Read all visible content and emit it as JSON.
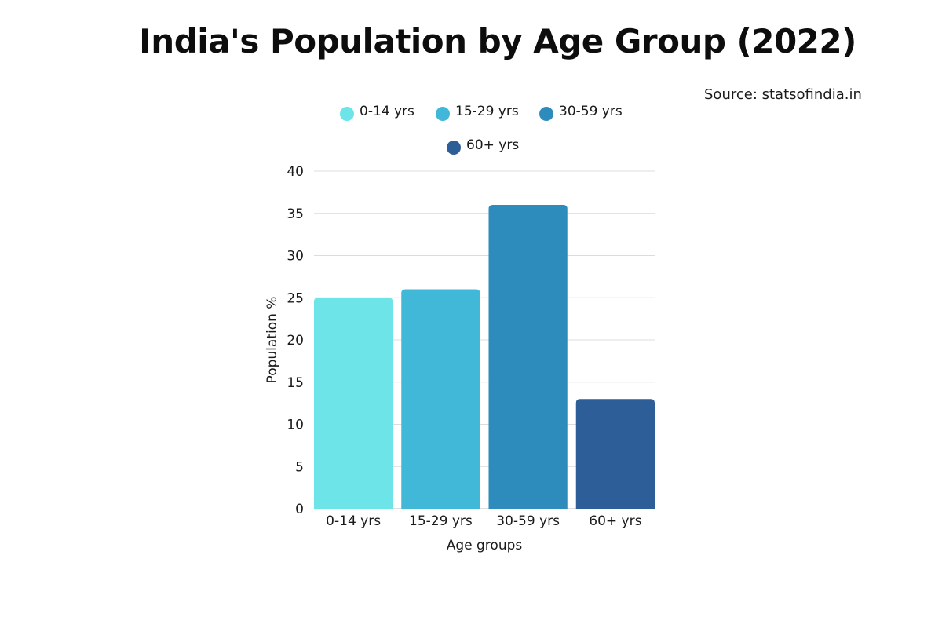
{
  "title": "India's Population by Age Group (2022)",
  "source": "Source: statsofindia.in",
  "chart_data": {
    "type": "bar",
    "categories": [
      "0-14 yrs",
      "15-29 yrs",
      "30-59 yrs",
      "60+ yrs"
    ],
    "values": [
      25,
      26,
      36,
      13
    ],
    "colors": [
      "#6ce4e8",
      "#42b8d8",
      "#2e8cbc",
      "#2e5e98"
    ],
    "legend": [
      "0-14 yrs",
      "15-29 yrs",
      "30-59 yrs",
      "60+ yrs"
    ],
    "legend_position": "top",
    "xlabel": "Age groups",
    "ylabel": "Population %",
    "ylim": [
      0,
      40
    ],
    "yticks": [
      0,
      5,
      10,
      15,
      20,
      25,
      30,
      35,
      40
    ],
    "grid": true
  }
}
